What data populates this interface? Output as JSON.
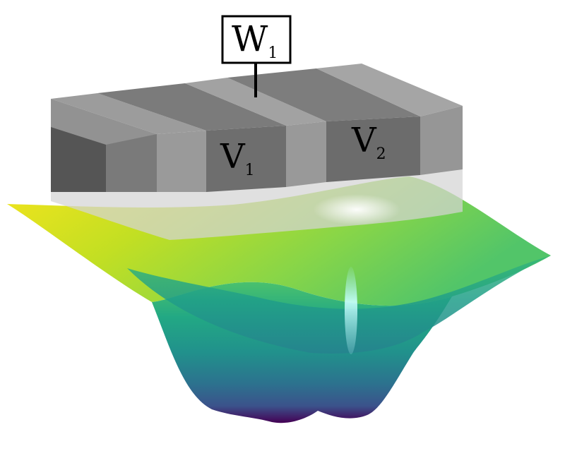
{
  "labels": {
    "w1_main": "W",
    "w1_sub": "1",
    "v1_main": "V",
    "v1_sub": "1",
    "v2_main": "V",
    "v2_sub": "2"
  },
  "colors": {
    "block_top_light": "#a3a3a3",
    "block_top_dark": "#7b7b7b",
    "block_front_light": "#959595",
    "block_front_dark": "#6a6a6a",
    "block_left_dark": "#4d4d4d",
    "substrate": "#d0d0d0",
    "surface_yellow": "#f2e61f",
    "surface_green": "#5cc863",
    "surface_teal": "#1f948c",
    "surface_blue": "#3b528b",
    "surface_purple": "#440154",
    "highlight": "#ffffff"
  }
}
